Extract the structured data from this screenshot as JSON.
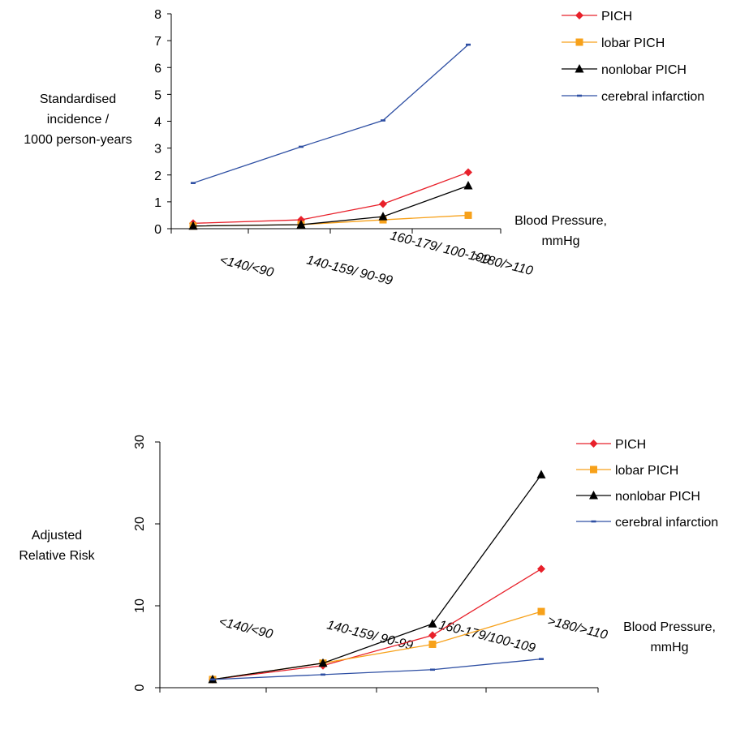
{
  "chart_data": [
    {
      "type": "line",
      "categories": [
        "<140/<90",
        "140-159/ 90-99",
        "160-179/ 100-109",
        ">180/>110"
      ],
      "ylabel": [
        "Standardised",
        "incidence /",
        "1000 person-years"
      ],
      "xlabel": [
        "Blood Pressure,",
        "mmHg"
      ],
      "ylim": [
        0,
        8
      ],
      "yticks": [
        "0",
        "1",
        "2",
        "3",
        "4",
        "5",
        "6",
        "7",
        "8"
      ],
      "series": [
        {
          "name": "PICH",
          "color": "#e8202a",
          "marker": "diamond",
          "values": [
            0.2,
            0.33,
            0.92,
            2.1
          ]
        },
        {
          "name": "lobar PICH",
          "color": "#f7a11a",
          "marker": "square",
          "values": [
            0.1,
            0.15,
            0.33,
            0.5
          ]
        },
        {
          "name": "nonlobar PICH",
          "color": "#000000",
          "marker": "triangle",
          "values": [
            0.1,
            0.15,
            0.45,
            1.6
          ]
        },
        {
          "name": "cerebral infarction",
          "color": "#2e4fa3",
          "marker": "dash",
          "values": [
            1.7,
            3.05,
            4.03,
            6.85
          ]
        }
      ]
    },
    {
      "type": "line",
      "categories": [
        "<140/<90",
        "140-159/ 90-99",
        "160-179/100-109",
        ">180/>110"
      ],
      "ylabel": [
        "Adjusted",
        "Relative Risk"
      ],
      "xlabel": [
        "Blood Pressure,",
        "mmHg"
      ],
      "ylim": [
        0,
        30
      ],
      "yticks": [
        "0",
        "10",
        "20",
        "30"
      ],
      "series": [
        {
          "name": "PICH",
          "color": "#e8202a",
          "marker": "diamond",
          "values": [
            1,
            2.7,
            6.4,
            14.5
          ]
        },
        {
          "name": "lobar PICH",
          "color": "#f7a11a",
          "marker": "square",
          "values": [
            1,
            3.0,
            5.3,
            9.3
          ]
        },
        {
          "name": "nonlobar PICH",
          "color": "#000000",
          "marker": "triangle",
          "values": [
            1,
            3.0,
            7.8,
            26.0
          ]
        },
        {
          "name": "cerebral infarction",
          "color": "#2e4fa3",
          "marker": "dash",
          "values": [
            1,
            1.6,
            2.2,
            3.5
          ]
        }
      ]
    }
  ]
}
